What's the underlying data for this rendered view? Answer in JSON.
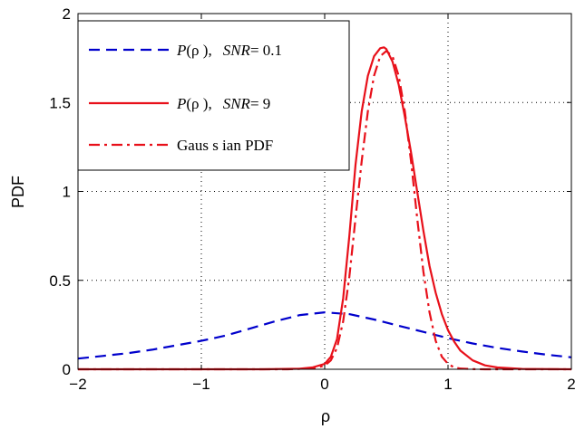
{
  "chart_data": {
    "type": "line",
    "xlabel": "ρ",
    "ylabel": "PDF",
    "xlim": [
      -2,
      2
    ],
    "ylim": [
      0,
      2
    ],
    "xticks": [
      -2,
      -1,
      0,
      1,
      2
    ],
    "yticks": [
      0,
      0.5,
      1,
      1.5,
      2
    ],
    "xtick_labels": [
      "−2",
      "−1",
      "0",
      "1",
      "2"
    ],
    "ytick_labels": [
      "0",
      "0.5",
      "1",
      "1.5",
      "2"
    ],
    "grid": true,
    "legend_position": "top-left",
    "series": [
      {
        "name": "P(ρ ), SNR = 0.1",
        "color": "#0000cc",
        "style": "dashed",
        "x": [
          -2,
          -1.8,
          -1.6,
          -1.4,
          -1.2,
          -1.0,
          -0.8,
          -0.6,
          -0.4,
          -0.2,
          0.0,
          0.2,
          0.4,
          0.6,
          0.8,
          1.0,
          1.2,
          1.4,
          1.6,
          1.8,
          2.0
        ],
        "y": [
          0.06,
          0.075,
          0.09,
          0.11,
          0.135,
          0.16,
          0.19,
          0.23,
          0.27,
          0.305,
          0.32,
          0.31,
          0.28,
          0.245,
          0.21,
          0.175,
          0.145,
          0.12,
          0.1,
          0.082,
          0.067
        ]
      },
      {
        "name": "P(ρ ), SNR = 9",
        "color": "#e8101a",
        "style": "solid",
        "x": [
          -2,
          -0.5,
          -0.2,
          -0.1,
          0.0,
          0.05,
          0.1,
          0.15,
          0.2,
          0.25,
          0.3,
          0.35,
          0.4,
          0.45,
          0.48,
          0.5,
          0.55,
          0.6,
          0.65,
          0.7,
          0.75,
          0.8,
          0.85,
          0.9,
          0.95,
          1.0,
          1.05,
          1.1,
          1.2,
          1.3,
          1.4,
          1.6,
          2.0
        ],
        "y": [
          0,
          0,
          0.003,
          0.01,
          0.03,
          0.07,
          0.17,
          0.4,
          0.75,
          1.15,
          1.45,
          1.65,
          1.76,
          1.805,
          1.81,
          1.8,
          1.73,
          1.6,
          1.42,
          1.22,
          1.0,
          0.78,
          0.58,
          0.43,
          0.31,
          0.22,
          0.155,
          0.105,
          0.05,
          0.022,
          0.01,
          0.002,
          0
        ]
      },
      {
        "name": "Gaussian PDF",
        "color": "#e8101a",
        "style": "dashdot",
        "x": [
          -2,
          -0.3,
          -0.1,
          0.0,
          0.05,
          0.1,
          0.15,
          0.2,
          0.25,
          0.3,
          0.35,
          0.4,
          0.45,
          0.5,
          0.55,
          0.6,
          0.65,
          0.7,
          0.75,
          0.8,
          0.85,
          0.9,
          0.95,
          1.0,
          1.05,
          1.1,
          1.2,
          1.3,
          2.0
        ],
        "y": [
          0,
          0,
          0.005,
          0.02,
          0.05,
          0.12,
          0.27,
          0.52,
          0.85,
          1.17,
          1.45,
          1.65,
          1.76,
          1.79,
          1.76,
          1.65,
          1.45,
          1.17,
          0.85,
          0.55,
          0.32,
          0.16,
          0.07,
          0.03,
          0.01,
          0.004,
          0.001,
          0,
          0
        ]
      }
    ]
  },
  "legend": {
    "items": [
      {
        "pre": "P",
        "mid": "(ρ ),",
        "snr_label": "SNR",
        "snr_value": "= 0.1"
      },
      {
        "pre": "P",
        "mid": "(ρ ),",
        "snr_label": "SNR",
        "snr_value": "= 9"
      },
      {
        "text": "Gaus s ian PDF"
      }
    ]
  }
}
